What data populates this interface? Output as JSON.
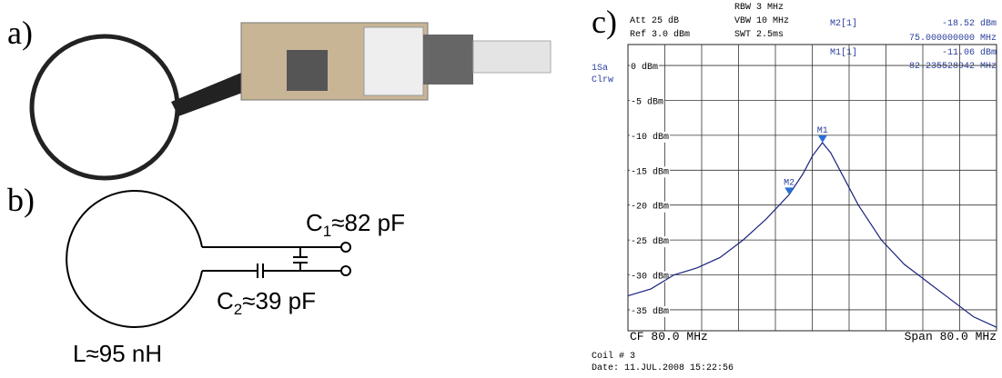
{
  "panel_labels": [
    "a)",
    "b)",
    "c)"
  ],
  "circuit": {
    "c1": {
      "symbol": "C",
      "subscript": "1",
      "value": "≈82 pF"
    },
    "c2": {
      "symbol": "C",
      "subscript": "2",
      "value": "≈39 pF"
    },
    "inductance": "L≈95 nH"
  },
  "analyzer": {
    "att": "Att  25 dB",
    "ref": "Ref  3.0 dBm",
    "rbw": "RBW 3 MHz",
    "vbw": "VBW 10 MHz",
    "swt": "SWT 2.5ms",
    "m2_name": "M2[1]",
    "m2_level": "-18.52 dBm",
    "m2_freq": "75.000000000 MHz",
    "m1_name": "M1[1]",
    "m1_level": "-11.06 dBm",
    "m1_freq": "82.235528942 MHz",
    "trace_mode": "1Sa",
    "trace_type": "Clrw",
    "cf": "CF 80.0 MHz",
    "span": "Span 80.0 MHz",
    "coil": "Coil # 3",
    "date": "Date: 11.JUL.2008  15:22:56"
  },
  "chart_data": {
    "type": "line",
    "x": [
      40,
      45,
      50,
      55,
      60,
      65,
      70,
      75,
      78,
      80,
      82.2,
      84,
      86,
      90,
      95,
      100,
      105,
      110,
      115,
      120
    ],
    "series": [
      {
        "color": "#1a237e",
        "values": [
          -33,
          -32,
          -30,
          -29,
          -27.5,
          -25,
          -22,
          -18.5,
          -15.5,
          -13,
          -11.06,
          -12.5,
          -15,
          -20,
          -25,
          -28.5,
          -31,
          -33.5,
          -36,
          -37.5
        ]
      }
    ],
    "markers": [
      {
        "name": "M1",
        "x": 82.235528942,
        "y": -11.06
      },
      {
        "name": "M2",
        "x": 75,
        "y": -18.52
      }
    ],
    "xlim": [
      40,
      120
    ],
    "ylim": [
      -38,
      3
    ],
    "yticks": [
      {
        "value": 0,
        "label": "0 dBm"
      },
      {
        "value": -5,
        "label": "-5 dBm"
      },
      {
        "value": -10,
        "label": "-10 dBm"
      },
      {
        "value": -15,
        "label": "-15 dBm"
      },
      {
        "value": -20,
        "label": "-20 dBm"
      },
      {
        "value": -25,
        "label": "-25 dBm"
      },
      {
        "value": -30,
        "label": "-30 dBm"
      },
      {
        "value": -35,
        "label": "-35 dBm"
      }
    ],
    "grid": true
  }
}
